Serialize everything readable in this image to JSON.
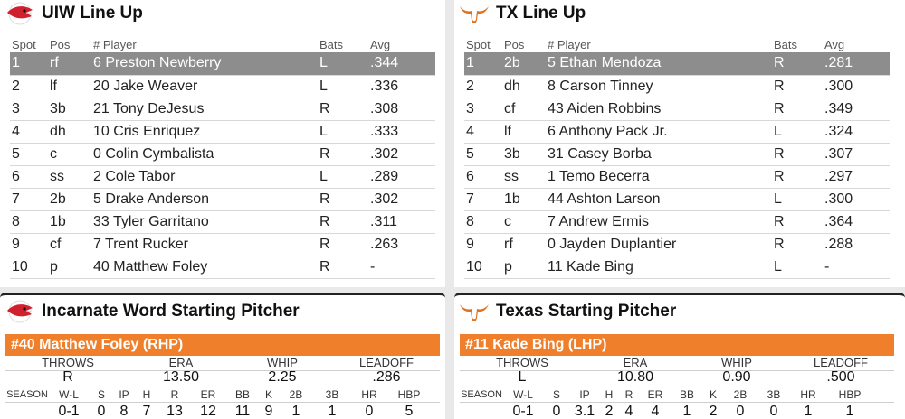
{
  "uiw_lineup": {
    "title": "UIW Line Up",
    "headers": {
      "spot": "Spot",
      "pos": "Pos",
      "player": "# Player",
      "bats": "Bats",
      "avg": "Avg"
    },
    "rows": [
      {
        "spot": "1",
        "pos": "rf",
        "player": "6 Preston Newberry",
        "bats": "L",
        "avg": ".344"
      },
      {
        "spot": "2",
        "pos": "lf",
        "player": "20 Jake Weaver",
        "bats": "L",
        "avg": ".336"
      },
      {
        "spot": "3",
        "pos": "3b",
        "player": "21 Tony DeJesus",
        "bats": "R",
        "avg": ".308"
      },
      {
        "spot": "4",
        "pos": "dh",
        "player": "10 Cris Enriquez",
        "bats": "L",
        "avg": ".333"
      },
      {
        "spot": "5",
        "pos": "c",
        "player": "0 Colin Cymbalista",
        "bats": "R",
        "avg": ".302"
      },
      {
        "spot": "6",
        "pos": "ss",
        "player": "2 Cole Tabor",
        "bats": "L",
        "avg": ".289"
      },
      {
        "spot": "7",
        "pos": "2b",
        "player": "5 Drake Anderson",
        "bats": "R",
        "avg": ".302"
      },
      {
        "spot": "8",
        "pos": "1b",
        "player": "33 Tyler Garritano",
        "bats": "R",
        "avg": ".311"
      },
      {
        "spot": "9",
        "pos": "cf",
        "player": "7 Trent Rucker",
        "bats": "R",
        "avg": ".263"
      },
      {
        "spot": "10",
        "pos": "p",
        "player": "40 Matthew Foley",
        "bats": "R",
        "avg": "-"
      }
    ]
  },
  "tx_lineup": {
    "title": "TX Line Up",
    "headers": {
      "spot": "Spot",
      "pos": "Pos",
      "player": "# Player",
      "bats": "Bats",
      "avg": "Avg"
    },
    "rows": [
      {
        "spot": "1",
        "pos": "2b",
        "player": "5 Ethan Mendoza",
        "bats": "R",
        "avg": ".281"
      },
      {
        "spot": "2",
        "pos": "dh",
        "player": "8 Carson Tinney",
        "bats": "R",
        "avg": ".300"
      },
      {
        "spot": "3",
        "pos": "cf",
        "player": "43 Aiden Robbins",
        "bats": "R",
        "avg": ".349"
      },
      {
        "spot": "4",
        "pos": "lf",
        "player": "6 Anthony Pack Jr.",
        "bats": "L",
        "avg": ".324"
      },
      {
        "spot": "5",
        "pos": "3b",
        "player": "31 Casey Borba",
        "bats": "R",
        "avg": ".307"
      },
      {
        "spot": "6",
        "pos": "ss",
        "player": "1 Temo Becerra",
        "bats": "R",
        "avg": ".297"
      },
      {
        "spot": "7",
        "pos": "1b",
        "player": "44 Ashton Larson",
        "bats": "L",
        "avg": ".300"
      },
      {
        "spot": "8",
        "pos": "c",
        "player": "7 Andrew Ermis",
        "bats": "R",
        "avg": ".364"
      },
      {
        "spot": "9",
        "pos": "rf",
        "player": "0 Jayden Duplantier",
        "bats": "R",
        "avg": ".288"
      },
      {
        "spot": "10",
        "pos": "p",
        "player": "11 Kade Bing",
        "bats": "L",
        "avg": "-"
      }
    ]
  },
  "uiw_pitcher": {
    "title": "Incarnate Word Starting Pitcher",
    "name": "#40 Matthew Foley (RHP)",
    "summary_headers": {
      "throws": "THROWS",
      "era": "ERA",
      "whip": "WHIP",
      "leadoff": "LEADOFF"
    },
    "summary": {
      "throws": "R",
      "era": "13.50",
      "whip": "2.25",
      "leadoff": ".286"
    },
    "season_label": "SEASON",
    "season_headers": [
      "W-L",
      "S",
      "IP",
      "H",
      "R",
      "ER",
      "BB",
      "K",
      "2B",
      "3B",
      "HR",
      "HBP"
    ],
    "season": [
      "0-1",
      "0",
      "8",
      "7",
      "13",
      "12",
      "11",
      "9",
      "1",
      "1",
      "0",
      "5"
    ]
  },
  "tx_pitcher": {
    "title": "Texas Starting Pitcher",
    "name": "#11 Kade Bing (LHP)",
    "summary_headers": {
      "throws": "THROWS",
      "era": "ERA",
      "whip": "WHIP",
      "leadoff": "LEADOFF"
    },
    "summary": {
      "throws": "L",
      "era": "10.80",
      "whip": "0.90",
      "leadoff": ".500"
    },
    "season_label": "SEASON",
    "season_headers": [
      "W-L",
      "S",
      "IP",
      "H",
      "R",
      "ER",
      "BB",
      "K",
      "2B",
      "3B",
      "HR",
      "HBP"
    ],
    "season": [
      "0-1",
      "0",
      "3.1",
      "2",
      "4",
      "4",
      "1",
      "2",
      "0",
      "0",
      "1",
      "1"
    ]
  },
  "colors": {
    "accent_orange": "#ef7f2a",
    "uiw_red": "#d0202e",
    "tx_orange": "#e0711f",
    "highlight_row": "#8d8d8d"
  },
  "icons": {
    "uiw": "cardinal-logo-icon",
    "tx": "longhorn-logo-icon"
  }
}
